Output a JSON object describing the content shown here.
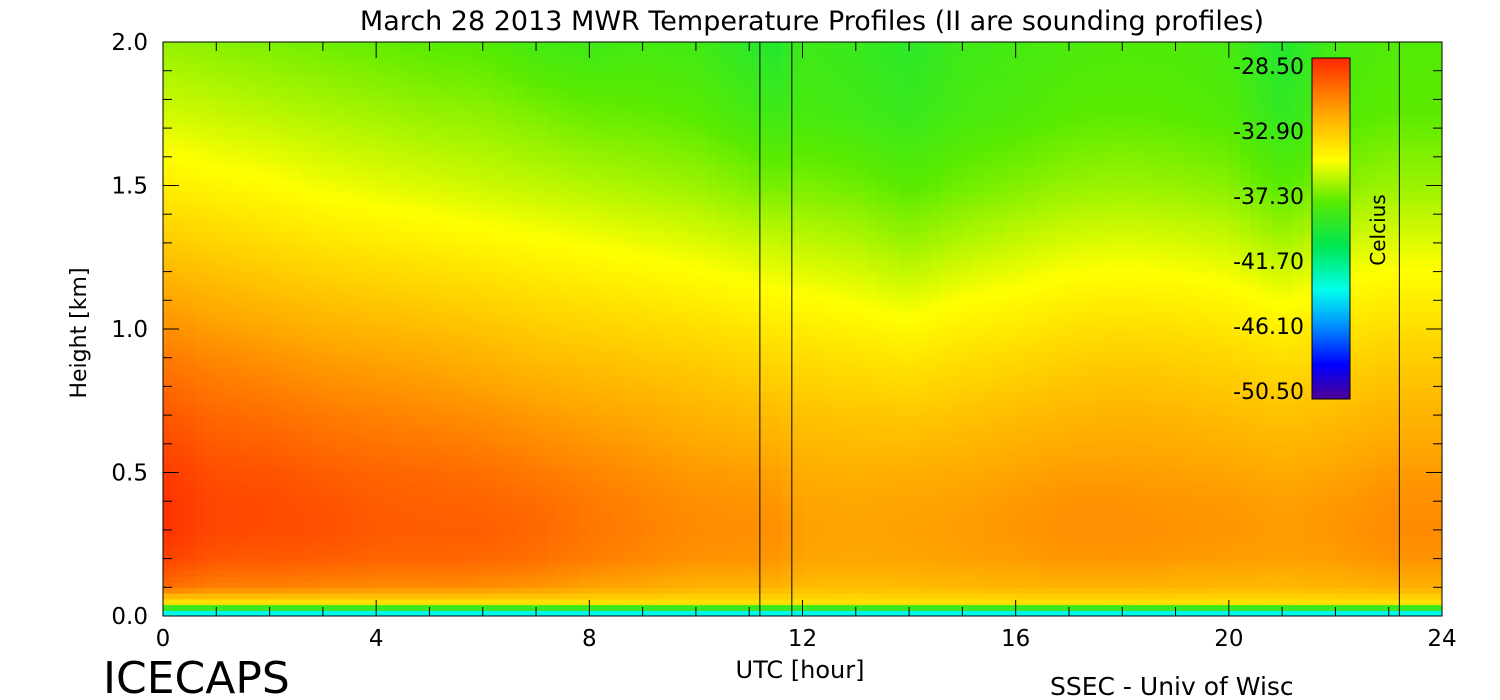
{
  "chart_data": {
    "type": "heatmap",
    "title": "March 28 2013 MWR Temperature Profiles (II are sounding profiles)",
    "xlabel": "UTC [hour]",
    "ylabel": "Height [km]",
    "xlim": [
      0,
      24
    ],
    "ylim": [
      0,
      2.0
    ],
    "x_ticks": [
      0,
      4,
      8,
      12,
      16,
      20,
      24
    ],
    "y_ticks": [
      "0.0",
      "0.5",
      "1.0",
      "1.5",
      "2.0"
    ],
    "colorbar": {
      "label": "Celcius",
      "ticks": [
        "-28.50",
        "-32.90",
        "-37.30",
        "-41.70",
        "-46.10",
        "-50.50"
      ],
      "range": [
        -50.5,
        -28.5
      ]
    },
    "sounding_times": [
      11.2,
      11.8,
      23.2
    ],
    "profile_times": [
      0,
      1,
      2,
      3,
      4,
      5,
      6,
      7,
      8,
      9,
      10,
      11.5,
      12,
      13,
      14,
      15,
      16,
      17,
      18,
      19,
      20,
      21,
      22,
      23,
      24
    ],
    "profile_heights": [
      0.0,
      0.05,
      0.1,
      0.2,
      0.3,
      0.4,
      0.5,
      0.7,
      0.9,
      1.1,
      1.3,
      1.5,
      1.75,
      2.0
    ],
    "temperature_profiles_C": [
      [
        -46,
        -34,
        -30.5,
        -29.2,
        -28.8,
        -28.8,
        -29.0,
        -29.8,
        -30.8,
        -32.0,
        -33.3,
        -34.5,
        -35.8,
        -36.8
      ],
      [
        -46,
        -34,
        -31.0,
        -29.8,
        -29.4,
        -29.4,
        -29.6,
        -30.3,
        -31.2,
        -32.4,
        -33.6,
        -34.8,
        -36.0,
        -37.0
      ],
      [
        -46,
        -34,
        -31.0,
        -29.9,
        -29.5,
        -29.5,
        -29.7,
        -30.5,
        -31.5,
        -32.7,
        -33.9,
        -35.0,
        -36.2,
        -37.2
      ],
      [
        -46,
        -34,
        -31.2,
        -30.0,
        -29.6,
        -29.7,
        -30.0,
        -30.8,
        -31.8,
        -33.0,
        -34.2,
        -35.3,
        -36.4,
        -37.4
      ],
      [
        -46,
        -34,
        -31.3,
        -30.2,
        -29.9,
        -30.0,
        -30.2,
        -31.0,
        -32.0,
        -33.2,
        -34.4,
        -35.5,
        -36.6,
        -37.6
      ],
      [
        -46,
        -34,
        -31.3,
        -30.2,
        -30.0,
        -30.1,
        -30.3,
        -31.2,
        -32.2,
        -33.4,
        -34.6,
        -35.7,
        -36.8,
        -37.8
      ],
      [
        -46,
        -34,
        -31.4,
        -30.3,
        -30.0,
        -30.2,
        -30.5,
        -31.4,
        -32.5,
        -33.6,
        -34.8,
        -35.9,
        -36.9,
        -37.9
      ],
      [
        -46,
        -34,
        -31.6,
        -30.5,
        -30.3,
        -30.4,
        -30.8,
        -31.7,
        -32.8,
        -33.9,
        -35.0,
        -36.1,
        -37.2,
        -38.4
      ],
      [
        -46,
        -34,
        -32.0,
        -30.9,
        -30.7,
        -30.8,
        -31.1,
        -32.0,
        -33.0,
        -34.1,
        -35.2,
        -36.3,
        -37.5,
        -38.6
      ],
      [
        -46,
        -34,
        -32.2,
        -31.2,
        -31.0,
        -31.1,
        -31.4,
        -32.2,
        -33.2,
        -34.3,
        -35.4,
        -36.5,
        -37.6,
        -38.4
      ],
      [
        -46,
        -34,
        -32.5,
        -31.5,
        -31.3,
        -31.4,
        -31.7,
        -32.5,
        -33.4,
        -34.5,
        -35.6,
        -36.7,
        -37.8,
        -38.5
      ],
      [
        -46,
        -34,
        -32.5,
        -31.6,
        -31.4,
        -31.6,
        -31.9,
        -32.8,
        -33.8,
        -34.9,
        -36.0,
        -37.3,
        -38.6,
        -39.5
      ],
      [
        -46,
        -34,
        -32.8,
        -32.0,
        -31.9,
        -32.0,
        -32.3,
        -33.0,
        -33.9,
        -35.0,
        -36.1,
        -37.2,
        -38.3,
        -38.6
      ],
      [
        -46,
        -34,
        -32.9,
        -32.1,
        -32.0,
        -32.1,
        -32.4,
        -33.1,
        -34.1,
        -35.2,
        -36.3,
        -37.4,
        -38.5,
        -38.8
      ],
      [
        -46,
        -34,
        -32.8,
        -32.0,
        -31.9,
        -32.0,
        -32.3,
        -33.2,
        -34.3,
        -35.5,
        -36.7,
        -37.8,
        -38.8,
        -39.2
      ],
      [
        -46,
        -34,
        -32.7,
        -31.9,
        -31.8,
        -31.9,
        -32.2,
        -33.0,
        -34.0,
        -35.1,
        -36.3,
        -37.4,
        -38.3,
        -38.6
      ],
      [
        -46,
        -34,
        -32.6,
        -31.8,
        -31.6,
        -31.7,
        -32.0,
        -32.8,
        -33.8,
        -34.9,
        -36.0,
        -37.1,
        -38.1,
        -38.4
      ],
      [
        -46,
        -34,
        -32.5,
        -31.6,
        -31.4,
        -31.5,
        -31.8,
        -32.6,
        -33.5,
        -34.6,
        -35.7,
        -36.8,
        -37.8,
        -38.2
      ],
      [
        -46,
        -34,
        -32.5,
        -31.6,
        -31.4,
        -31.5,
        -31.8,
        -32.5,
        -33.4,
        -34.5,
        -35.6,
        -36.7,
        -37.7,
        -38.1
      ],
      [
        -46,
        -34,
        -32.6,
        -31.7,
        -31.5,
        -31.6,
        -31.9,
        -32.6,
        -33.5,
        -34.6,
        -35.7,
        -36.8,
        -37.8,
        -38.1
      ],
      [
        -46,
        -34,
        -32.7,
        -31.8,
        -31.6,
        -31.7,
        -32.0,
        -32.8,
        -33.7,
        -34.8,
        -35.9,
        -37.0,
        -38.0,
        -38.3
      ],
      [
        -46,
        -34,
        -32.7,
        -31.9,
        -31.8,
        -31.9,
        -32.2,
        -33.0,
        -34.0,
        -35.2,
        -36.5,
        -37.8,
        -39.0,
        -39.5
      ],
      [
        -46,
        -34,
        -32.6,
        -31.8,
        -31.6,
        -31.7,
        -32.0,
        -32.8,
        -33.7,
        -34.8,
        -35.9,
        -37.0,
        -38.0,
        -38.4
      ],
      [
        -46,
        -34,
        -32.4,
        -31.5,
        -31.3,
        -31.4,
        -31.7,
        -32.5,
        -33.4,
        -34.5,
        -35.6,
        -36.7,
        -37.7,
        -38.0
      ],
      [
        -46,
        -34,
        -32.4,
        -31.5,
        -31.3,
        -31.4,
        -31.7,
        -32.5,
        -33.4,
        -34.5,
        -35.6,
        -36.7,
        -37.7,
        -38.0
      ]
    ]
  },
  "footer": {
    "project": "ICECAPS",
    "credit": "SSEC - Univ of Wisc"
  }
}
